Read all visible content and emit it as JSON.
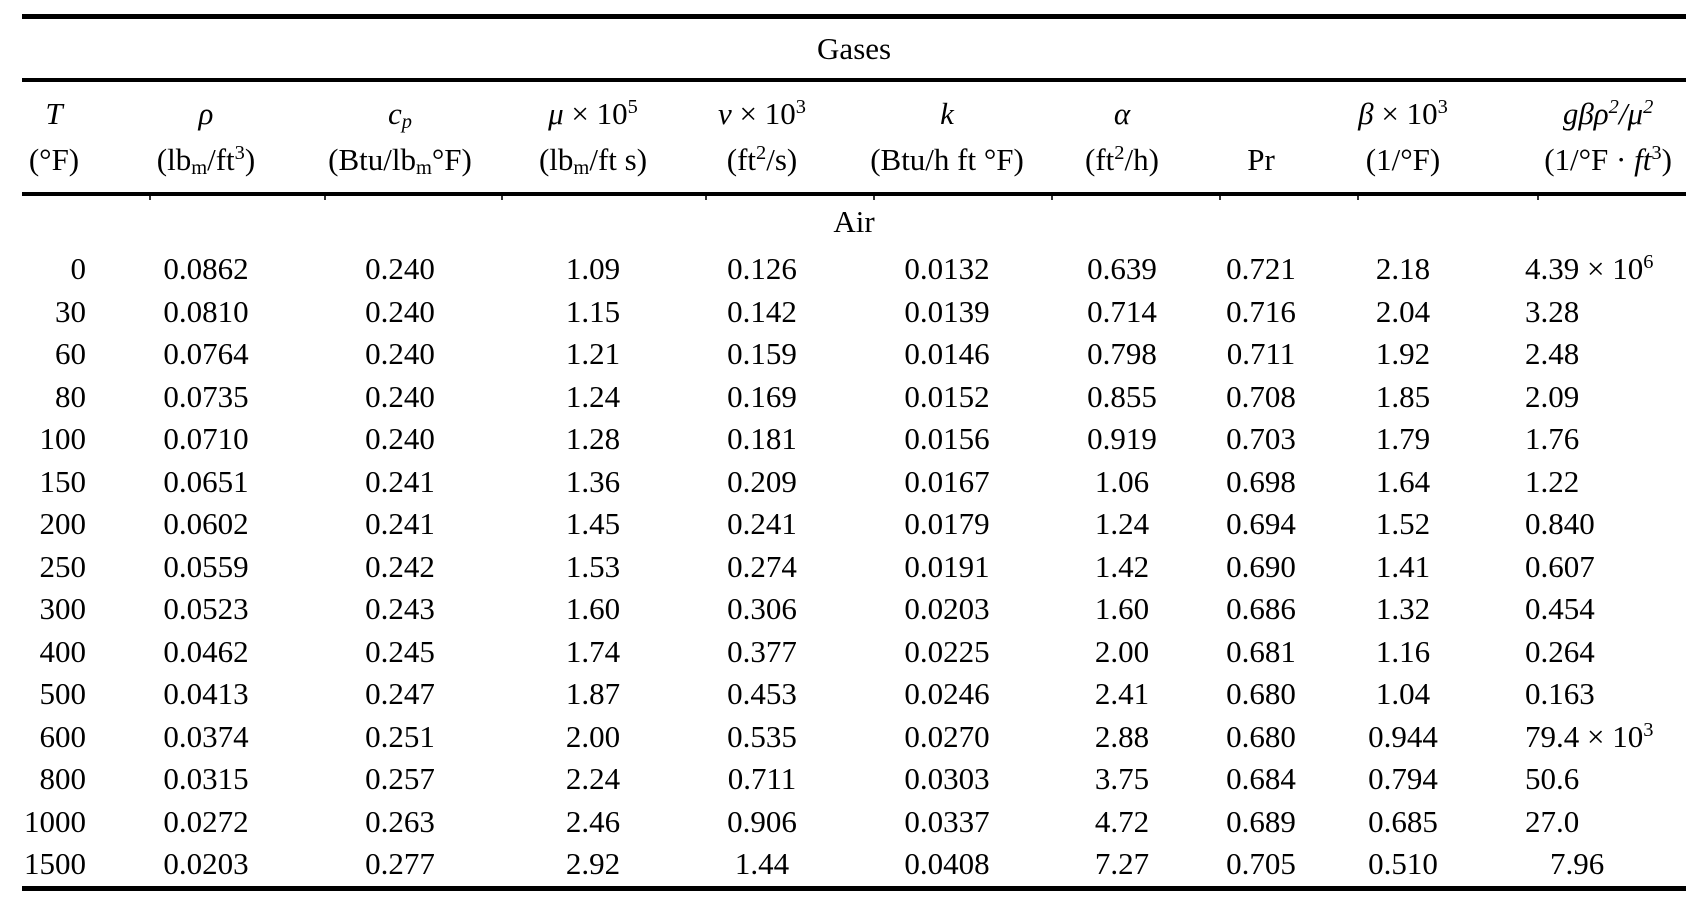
{
  "table": {
    "title": "Gases",
    "section": "Air",
    "columns": [
      {
        "id": "temperature",
        "line1": [
          {
            "t": "T",
            "i": 1
          }
        ],
        "line2": [
          {
            "t": "(°F)"
          }
        ]
      },
      {
        "id": "density-rho",
        "line1": [
          {
            "t": "ρ",
            "i": 1
          }
        ],
        "line2": [
          {
            "t": "(lb"
          },
          {
            "t": "m",
            "v": "sub"
          },
          {
            "t": "/ft"
          },
          {
            "t": "3",
            "v": "sup"
          },
          {
            "t": ")"
          }
        ]
      },
      {
        "id": "specific-heat-cp",
        "line1": [
          {
            "t": "c",
            "i": 1
          },
          {
            "t": "p",
            "v": "sub",
            "i": 1
          }
        ],
        "line2": [
          {
            "t": "(Btu/lb"
          },
          {
            "t": "m",
            "v": "sub"
          },
          {
            "t": "°F)"
          }
        ]
      },
      {
        "id": "viscosity-mu",
        "line1": [
          {
            "t": "μ",
            "i": 1
          },
          {
            "t": " × 10"
          },
          {
            "t": "5",
            "v": "sup"
          }
        ],
        "line2": [
          {
            "t": "(lb"
          },
          {
            "t": "m",
            "v": "sub"
          },
          {
            "t": "/ft s)"
          }
        ]
      },
      {
        "id": "kinematic-visc-nu",
        "line1": [
          {
            "t": "ν",
            "i": 1
          },
          {
            "t": " × 10"
          },
          {
            "t": "3",
            "v": "sup"
          }
        ],
        "line2": [
          {
            "t": "(ft"
          },
          {
            "t": "2",
            "v": "sup"
          },
          {
            "t": "/s)"
          }
        ]
      },
      {
        "id": "conductivity-k",
        "line1": [
          {
            "t": "k",
            "i": 1
          }
        ],
        "line2": [
          {
            "t": "(Btu/h ft °F)"
          }
        ]
      },
      {
        "id": "diffusivity-alpha",
        "line1": [
          {
            "t": "α",
            "i": 1
          }
        ],
        "line2": [
          {
            "t": "(ft"
          },
          {
            "t": "2",
            "v": "sup"
          },
          {
            "t": "/h)"
          }
        ]
      },
      {
        "id": "prandtl-number",
        "line1": [],
        "line2": [
          {
            "t": "Pr"
          }
        ]
      },
      {
        "id": "expansion-beta",
        "line1": [
          {
            "t": "β",
            "i": 1
          },
          {
            "t": " × 10"
          },
          {
            "t": "3",
            "v": "sup"
          }
        ],
        "line2": [
          {
            "t": "(1/°F)"
          }
        ]
      },
      {
        "id": "g-beta-rho2-mu2",
        "line1": [
          {
            "t": "gβρ",
            "i": 1
          },
          {
            "t": "2",
            "v": "sup",
            "i": 1
          },
          {
            "t": "/μ",
            "i": 1
          },
          {
            "t": "2",
            "v": "sup",
            "i": 1
          }
        ],
        "line2": [
          {
            "t": "(1/°F · "
          },
          {
            "t": "ft",
            "i": 1
          },
          {
            "t": "3",
            "v": "sup"
          },
          {
            "t": ")"
          }
        ]
      }
    ],
    "rows": [
      [
        "0",
        "0.0862",
        "0.240",
        "1.09",
        "0.126",
        "0.0132",
        "0.639",
        "0.721",
        "2.18",
        {
          "segs": [
            {
              "t": "4.39 × 10"
            },
            {
              "t": "6",
              "v": "sup"
            }
          ]
        }
      ],
      [
        "30",
        "0.0810",
        "0.240",
        "1.15",
        "0.142",
        "0.0139",
        "0.714",
        "0.716",
        "2.04",
        "3.28"
      ],
      [
        "60",
        "0.0764",
        "0.240",
        "1.21",
        "0.159",
        "0.0146",
        "0.798",
        "0.711",
        "1.92",
        "2.48"
      ],
      [
        "80",
        "0.0735",
        "0.240",
        "1.24",
        "0.169",
        "0.0152",
        "0.855",
        "0.708",
        "1.85",
        "2.09"
      ],
      [
        "100",
        "0.0710",
        "0.240",
        "1.28",
        "0.181",
        "0.0156",
        "0.919",
        "0.703",
        "1.79",
        "1.76"
      ],
      [
        "150",
        "0.0651",
        "0.241",
        "1.36",
        "0.209",
        "0.0167",
        "1.06",
        "0.698",
        "1.64",
        "1.22"
      ],
      [
        "200",
        "0.0602",
        "0.241",
        "1.45",
        "0.241",
        "0.0179",
        "1.24",
        "0.694",
        "1.52",
        "0.840"
      ],
      [
        "250",
        "0.0559",
        "0.242",
        "1.53",
        "0.274",
        "0.0191",
        "1.42",
        "0.690",
        "1.41",
        "0.607"
      ],
      [
        "300",
        "0.0523",
        "0.243",
        "1.60",
        "0.306",
        "0.0203",
        "1.60",
        "0.686",
        "1.32",
        "0.454"
      ],
      [
        "400",
        "0.0462",
        "0.245",
        "1.74",
        "0.377",
        "0.0225",
        "2.00",
        "0.681",
        "1.16",
        "0.264"
      ],
      [
        "500",
        "0.0413",
        "0.247",
        "1.87",
        "0.453",
        "0.0246",
        "2.41",
        "0.680",
        "1.04",
        "0.163"
      ],
      [
        "600",
        "0.0374",
        "0.251",
        "2.00",
        "0.535",
        "0.0270",
        "2.88",
        "0.680",
        "0.944",
        {
          "segs": [
            {
              "t": "79.4 × 10"
            },
            {
              "t": "3",
              "v": "sup"
            }
          ]
        }
      ],
      [
        "800",
        "0.0315",
        "0.257",
        "2.24",
        "0.711",
        "0.0303",
        "3.75",
        "0.684",
        "0.794",
        "50.6"
      ],
      [
        "1000",
        "0.0272",
        "0.263",
        "2.46",
        "0.906",
        "0.0337",
        "4.72",
        "0.689",
        "0.685",
        "27.0"
      ],
      [
        "1500",
        "0.0203",
        "0.277",
        "2.92",
        "1.44",
        "0.0408",
        "7.27",
        "0.705",
        "0.510",
        {
          "segs": [
            {
              "t": "7.96"
            }
          ],
          "indent": 25
        }
      ]
    ]
  }
}
